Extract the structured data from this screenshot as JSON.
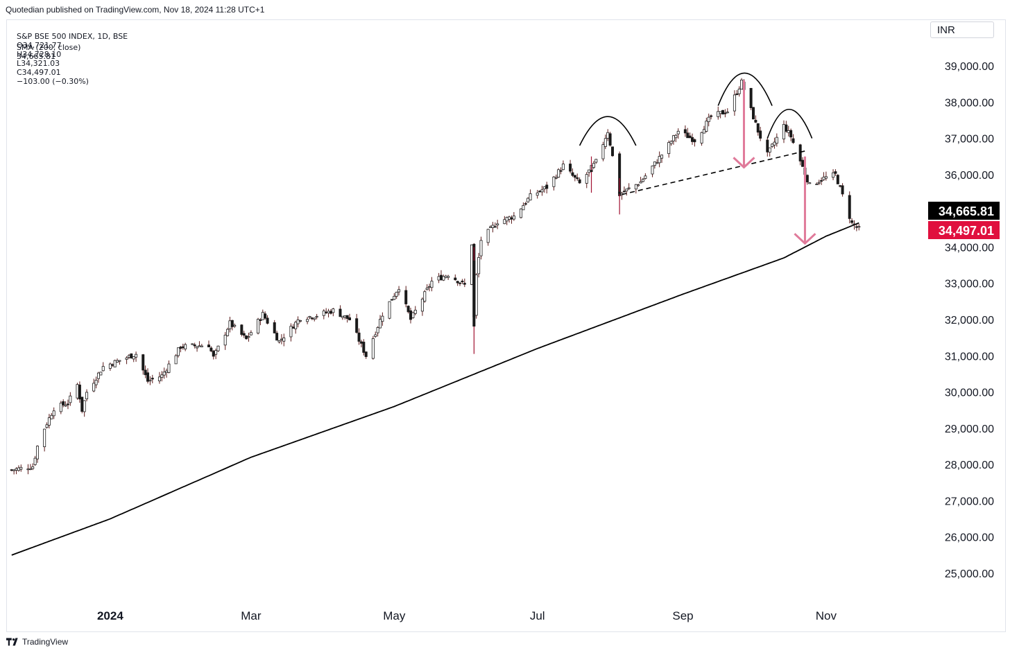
{
  "header": {
    "published": "Quotedian published on TradingView.com, Nov 18, 2024 11:28 UTC+1",
    "symbol": "S&P BSE 500 INDEX, 1D, BSE",
    "ohlc": {
      "open": "O34,721.77",
      "high": "H34,728.10",
      "low": "L34,321.03",
      "close": "C34,497.01",
      "change": "−103.00 (−0.30%)"
    },
    "sma_label": "SMA (200, close)",
    "sma_value": "34,665.81"
  },
  "currency": "INR",
  "footer": {
    "brand": "TradingView"
  },
  "colors": {
    "up_candle": "#ffffff",
    "down_candle": "#1a1a1a",
    "candle_outline": "#5a1a1a",
    "sma_line": "#000000",
    "arrow": "#e07a9a",
    "last_price_badge": "#e0103e",
    "sma_badge": "#000000"
  },
  "chart_data": {
    "type": "candlestick",
    "ylim": [
      24000,
      39800
    ],
    "y_ticks": [
      "39,000.00",
      "38,000.00",
      "37,000.00",
      "36,000.00",
      "34,000.00",
      "33,000.00",
      "32,000.00",
      "31,000.00",
      "30,000.00",
      "29,000.00",
      "28,000.00",
      "27,000.00",
      "26,000.00",
      "25,000.00"
    ],
    "y_tick_values": [
      39000,
      38000,
      37000,
      36000,
      34000,
      33000,
      32000,
      31000,
      30000,
      29000,
      28000,
      27000,
      26000,
      25000
    ],
    "x_ticks": [
      "2024",
      "Mar",
      "May",
      "Jul",
      "Sep",
      "Nov"
    ],
    "x_tick_dates": [
      "2024-01-01",
      "2024-03-01",
      "2024-05-01",
      "2024-07-01",
      "2024-09-01",
      "2024-11-01"
    ],
    "badges": [
      {
        "label": "34,665.81",
        "value": 34665.81,
        "type": "sma"
      },
      {
        "label": "34,497.01",
        "value": 34497.01,
        "type": "last"
      }
    ],
    "close_anchors": [
      [
        "2023-11-20",
        27850
      ],
      [
        "2023-11-29",
        27950
      ],
      [
        "2023-12-01",
        28500
      ],
      [
        "2023-12-04",
        29000
      ],
      [
        "2023-12-08",
        29550
      ],
      [
        "2023-12-14",
        29700
      ],
      [
        "2023-12-18",
        30200
      ],
      [
        "2023-12-20",
        29500
      ],
      [
        "2023-12-22",
        30000
      ],
      [
        "2023-12-29",
        30700
      ],
      [
        "2024-01-12",
        31050
      ],
      [
        "2024-01-17",
        30300
      ],
      [
        "2024-01-23",
        30450
      ],
      [
        "2024-01-31",
        31250
      ],
      [
        "2024-02-12",
        31300
      ],
      [
        "2024-02-14",
        30950
      ],
      [
        "2024-02-21",
        31900
      ],
      [
        "2024-02-28",
        31450
      ],
      [
        "2024-03-06",
        32150
      ],
      [
        "2024-03-13",
        31400
      ],
      [
        "2024-03-22",
        32050
      ],
      [
        "2024-03-28",
        32100
      ],
      [
        "2024-04-05",
        32250
      ],
      [
        "2024-04-12",
        32000
      ],
      [
        "2024-04-19",
        31000
      ],
      [
        "2024-04-26",
        32150
      ],
      [
        "2024-05-03",
        32900
      ],
      [
        "2024-05-08",
        32000
      ],
      [
        "2024-05-17",
        33050
      ],
      [
        "2024-05-24",
        33250
      ],
      [
        "2024-05-31",
        32950
      ],
      [
        "2024-06-03",
        34100
      ],
      [
        "2024-06-04",
        32050
      ],
      [
        "2024-06-05",
        33200
      ],
      [
        "2024-06-07",
        34200
      ],
      [
        "2024-06-14",
        34700
      ],
      [
        "2024-06-21",
        34850
      ],
      [
        "2024-06-28",
        35400
      ],
      [
        "2024-07-05",
        35650
      ],
      [
        "2024-07-12",
        36250
      ],
      [
        "2024-07-19",
        35750
      ],
      [
        "2024-07-26",
        36350
      ],
      [
        "2024-07-31",
        37200
      ],
      [
        "2024-08-05",
        35450
      ],
      [
        "2024-08-14",
        35800
      ],
      [
        "2024-08-23",
        36550
      ],
      [
        "2024-08-30",
        37200
      ],
      [
        "2024-09-06",
        36950
      ],
      [
        "2024-09-13",
        37600
      ],
      [
        "2024-09-20",
        37750
      ],
      [
        "2024-09-26",
        38550
      ],
      [
        "2024-10-03",
        37200
      ],
      [
        "2024-10-07",
        36550
      ],
      [
        "2024-10-14",
        37350
      ],
      [
        "2024-10-17",
        37050
      ],
      [
        "2024-10-25",
        35700
      ],
      [
        "2024-10-31",
        35900
      ],
      [
        "2024-11-05",
        36000
      ],
      [
        "2024-11-12",
        34650
      ],
      [
        "2024-11-15",
        34497
      ]
    ],
    "sma_anchors": [
      [
        "2023-11-20",
        25500
      ],
      [
        "2024-01-01",
        26500
      ],
      [
        "2024-03-01",
        28200
      ],
      [
        "2024-05-01",
        29600
      ],
      [
        "2024-07-01",
        31200
      ],
      [
        "2024-09-01",
        32700
      ],
      [
        "2024-10-14",
        33700
      ],
      [
        "2024-11-01",
        34300
      ],
      [
        "2024-11-15",
        34665.81
      ]
    ],
    "spikes": [
      {
        "date": "2024-06-04",
        "low": 31050,
        "high": 34000
      },
      {
        "date": "2024-08-05",
        "low": 34900,
        "high": 35900
      },
      {
        "date": "2024-07-24",
        "low": 35500,
        "high": 36500
      }
    ],
    "annotations": {
      "neckline": {
        "from": [
          "2024-08-06",
          35450
        ],
        "to": [
          "2024-10-23",
          36650
        ]
      },
      "arcs": [
        {
          "left": [
            "2024-07-19",
            36800
          ],
          "apex": [
            "2024-07-31",
            37600
          ],
          "right": [
            "2024-08-12",
            36800
          ]
        },
        {
          "left": [
            "2024-09-16",
            37900
          ],
          "apex": [
            "2024-09-27",
            38800
          ],
          "right": [
            "2024-10-09",
            37900
          ]
        },
        {
          "left": [
            "2024-10-07",
            37000
          ],
          "apex": [
            "2024-10-16",
            37800
          ],
          "right": [
            "2024-10-26",
            37000
          ]
        }
      ],
      "arrows": [
        {
          "from": [
            "2024-09-27",
            38600
          ],
          "to": [
            "2024-09-27",
            36200
          ]
        },
        {
          "from": [
            "2024-10-23",
            36500
          ],
          "to": [
            "2024-10-23",
            34100
          ]
        }
      ]
    }
  }
}
